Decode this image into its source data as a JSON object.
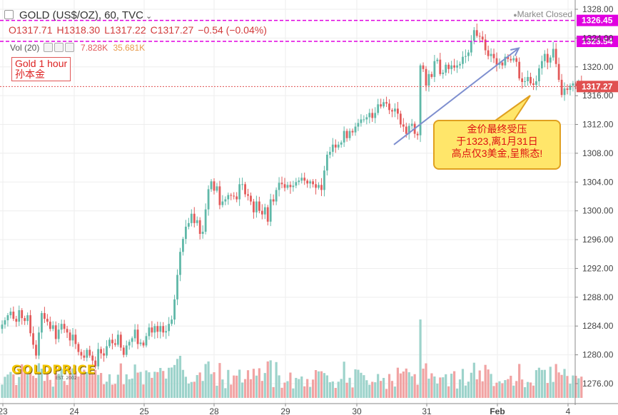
{
  "header": {
    "symbol": "GOLD (US$/OZ), 60, TVC",
    "ohlc": {
      "o": "O1317.71",
      "h": "H1318.30",
      "l": "L1317.22",
      "c": "C1317.27",
      "chg": "−0.54 (−0.04%)"
    },
    "market_status": "Market Closed"
  },
  "volume_indicator": {
    "label": "Vol (20)",
    "v1": "7.828K",
    "v2": "35.681K"
  },
  "caption": {
    "line1": "Gold 1 hour",
    "line2": "孙本金"
  },
  "callout": {
    "line1": "金价最终受压",
    "line2": "于1323,离1月31日",
    "line3": "高点仅3美金,呈熊态!"
  },
  "logo": {
    "name": "GOLDPRICE",
    "tag": "EST. 2002"
  },
  "colors": {
    "up": "#5fb8a8",
    "down": "#e35a5a",
    "vol_up": "#9dd3cb",
    "vol_down": "#f1a3a3",
    "guide": "#e000e0",
    "price_line": "#e05050",
    "trend": "#7e8fcf"
  },
  "chart_data": {
    "type": "candlestick",
    "title": "GOLD (US$/OZ), 60, TVC",
    "ylim": [
      1273.5,
      1329
    ],
    "y_ticks": [
      "1328.00",
      "1324.00",
      "1320.00",
      "1316.00",
      "1312.00",
      "1308.00",
      "1304.00",
      "1300.00",
      "1296.00",
      "1292.00",
      "1288.00",
      "1284.00",
      "1280.00",
      "1276.00"
    ],
    "x_ticks": [
      "23",
      "24",
      "25",
      "28",
      "29",
      "30",
      "31",
      "Feb",
      "4"
    ],
    "price_labels": [
      {
        "value": 1326.45,
        "label": "1326.45",
        "kind": "guide"
      },
      {
        "value": 1323.54,
        "label": "1323.54",
        "kind": "guide"
      },
      {
        "value": 1317.27,
        "label": "1317.27",
        "kind": "last"
      }
    ],
    "trend_lines": [
      {
        "from": {
          "x": "Jan 30 14:00",
          "y": 1309.2
        },
        "to": {
          "x": "Feb 1 06:00",
          "y": 1322.6
        }
      }
    ],
    "close_series": [
      1284.2,
      1284.8,
      1285.5,
      1286.0,
      1285.0,
      1284.6,
      1286.2,
      1285.1,
      1284.7,
      1285.5,
      1283.0,
      1281.4,
      1279.9,
      1283.1,
      1285.8,
      1285.0,
      1284.6,
      1283.6,
      1284.1,
      1282.2,
      1283.5,
      1284.3,
      1283.6,
      1283.1,
      1282.0,
      1282.8,
      1281.5,
      1280.4,
      1279.9,
      1279.6,
      1280.7,
      1279.9,
      1279.2,
      1278.4,
      1280.8,
      1280.2,
      1279.9,
      1281.2,
      1282.1,
      1281.6,
      1281.4,
      1282.8,
      1281.0,
      1280.0,
      1281.3,
      1281.8,
      1282.3,
      1283.5,
      1281.5,
      1281.7,
      1281.3,
      1282.6,
      1283.8,
      1283.1,
      1284.0,
      1283.2,
      1284.0,
      1283.1,
      1283.3,
      1284.3,
      1284.9,
      1287.7,
      1291.1,
      1294.3,
      1296.1,
      1297.8,
      1298.3,
      1299.6,
      1298.3,
      1298.7,
      1296.8,
      1297.1,
      1300.2,
      1303.0,
      1304.1,
      1302.8,
      1303.4,
      1300.8,
      1301.3,
      1301.6,
      1302.2,
      1302.1,
      1302.0,
      1301.6,
      1303.7,
      1303.7,
      1302.3,
      1302.1,
      1301.3,
      1299.8,
      1301.3,
      1300.0,
      1299.5,
      1300.5,
      1298.5,
      1301.6,
      1301.3,
      1302.9,
      1303.9,
      1303.7,
      1303.2,
      1303.6,
      1303.3,
      1303.5,
      1304.0,
      1304.2,
      1304.6,
      1304.2,
      1303.8,
      1304.1,
      1303.7,
      1303.2,
      1303.6,
      1302.9,
      1305.6,
      1307.8,
      1308.2,
      1309.2,
      1308.8,
      1309.2,
      1309.5,
      1311.1,
      1310.1,
      1311.1,
      1310.9,
      1311.7,
      1312.2,
      1312.7,
      1312.7,
      1313.0,
      1313.6,
      1312.9,
      1313.6,
      1314.8,
      1314.5,
      1315.1,
      1314.9,
      1314.0,
      1313.8,
      1314.2,
      1313.5,
      1312.0,
      1311.7,
      1310.7,
      1311.8,
      1312.1,
      1310.7,
      1310.5,
      1320.2,
      1319.7,
      1317.4,
      1319.0,
      1318.6,
      1320.8,
      1321.0,
      1319.0,
      1319.2,
      1320.3,
      1319.7,
      1320.2,
      1319.9,
      1320.2,
      1320.4,
      1321.4,
      1321.5,
      1322.0,
      1323.6,
      1325.1,
      1324.3,
      1324.2,
      1323.8,
      1322.3,
      1321.5,
      1321.8,
      1321.2,
      1320.3,
      1320.6,
      1320.2,
      1321.4,
      1321.1,
      1320.9,
      1321.2,
      1320.7,
      1318.4,
      1317.9,
      1318.0,
      1318.6,
      1317.7,
      1317.5,
      1318.0,
      1319.8,
      1320.8,
      1321.8,
      1320.6,
      1321.3,
      1322.5,
      1320.4,
      1318.2,
      1316.1,
      1317.0,
      1316.8,
      1317.4,
      1317.7,
      1317.3,
      1317.9,
      1317.3
    ]
  }
}
